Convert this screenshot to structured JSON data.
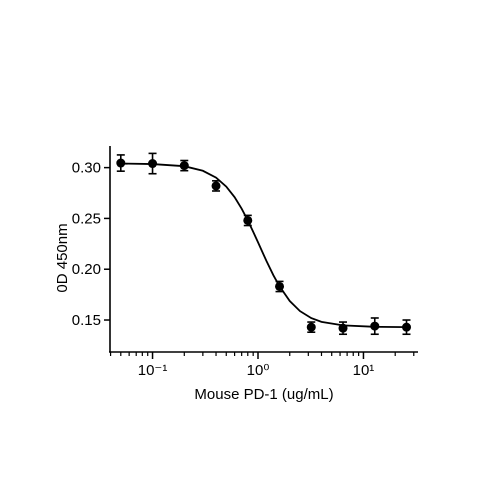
{
  "chart_data": {
    "type": "scatter",
    "x_label": "Mouse PD-1 (ug/mL)",
    "y_label": "0D 450nm",
    "x_scale": "log",
    "xlim": [
      0.0395,
      32.9
    ],
    "ylim": [
      0.12,
      0.32
    ],
    "xticks": [
      {
        "value": 0.1,
        "label": "10⁻¹"
      },
      {
        "value": 1,
        "label": "10⁰"
      },
      {
        "value": 10,
        "label": "10¹"
      }
    ],
    "x_minor_ticks": [
      0.04,
      0.05,
      0.06,
      0.07,
      0.08,
      0.09,
      0.2,
      0.3,
      0.4,
      0.5,
      0.6,
      0.7,
      0.8,
      0.9,
      2,
      3,
      4,
      5,
      6,
      7,
      8,
      9,
      20,
      30
    ],
    "yticks": [
      {
        "value": 0.15,
        "label": "0.15"
      },
      {
        "value": 0.2,
        "label": "0.20"
      },
      {
        "value": 0.25,
        "label": "0.25"
      },
      {
        "value": 0.3,
        "label": "0.30"
      }
    ],
    "series": [
      {
        "color": "#000000",
        "x": [
          0.05,
          0.1,
          0.2,
          0.4,
          0.8,
          1.6,
          3.2,
          6.4,
          12.8,
          25.6
        ],
        "y": [
          0.3045,
          0.304,
          0.302,
          0.282,
          0.248,
          0.183,
          0.143,
          0.142,
          0.144,
          0.143
        ],
        "err": [
          0.008,
          0.01,
          0.005,
          0.005,
          0.005,
          0.005,
          0.005,
          0.006,
          0.008,
          0.007
        ]
      }
    ],
    "curve": {
      "color": "#000000",
      "x": [
        0.05,
        0.1,
        0.2,
        0.3,
        0.4,
        0.5,
        0.6,
        0.7,
        0.8,
        0.9,
        1.0,
        1.2,
        1.4,
        1.6,
        2.0,
        2.5,
        3.2,
        4,
        6.4,
        12.8,
        25.6
      ],
      "y": [
        0.304,
        0.3035,
        0.3014,
        0.2969,
        0.2902,
        0.2813,
        0.2709,
        0.2596,
        0.2481,
        0.2369,
        0.2265,
        0.2083,
        0.194,
        0.1832,
        0.1687,
        0.1588,
        0.1519,
        0.1482,
        0.1447,
        0.1433,
        0.143
      ]
    }
  }
}
